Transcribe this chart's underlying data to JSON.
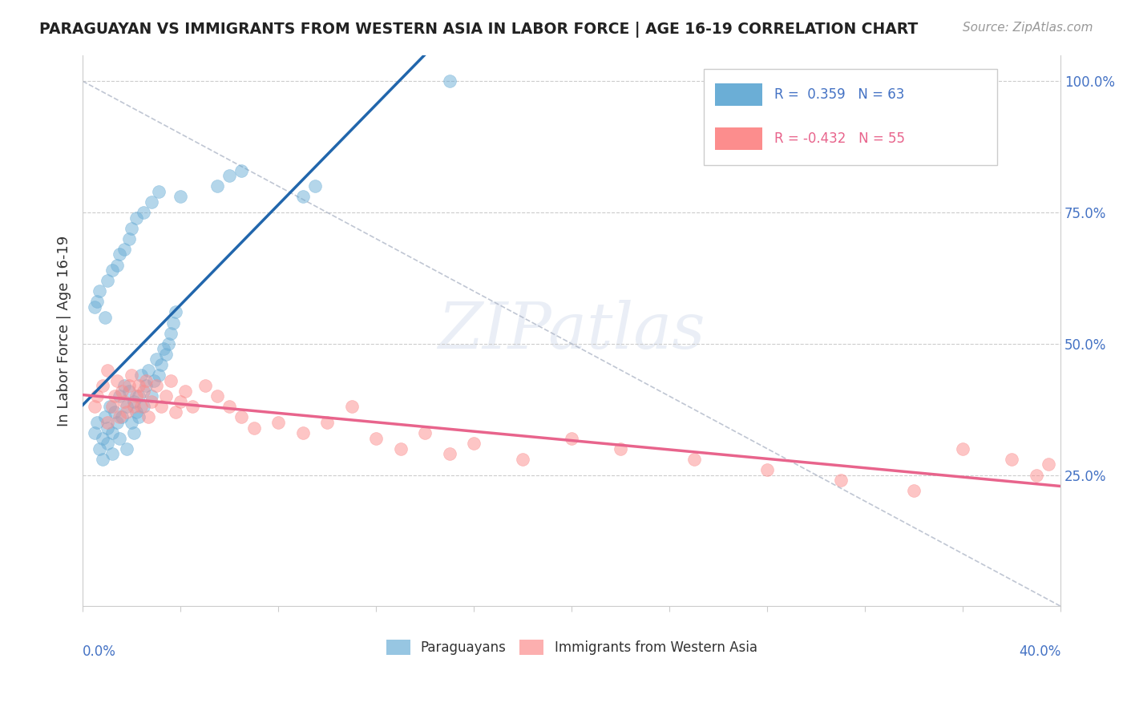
{
  "title": "PARAGUAYAN VS IMMIGRANTS FROM WESTERN ASIA IN LABOR FORCE | AGE 16-19 CORRELATION CHART",
  "source_text": "Source: ZipAtlas.com",
  "ylabel_label": "In Labor Force | Age 16-19",
  "legend_labels": [
    "Paraguayans",
    "Immigrants from Western Asia"
  ],
  "blue_color": "#6baed6",
  "pink_color": "#fc8d8d",
  "blue_reg_color": "#2166ac",
  "pink_reg_color": "#e8648c",
  "background_color": "#ffffff",
  "grid_color": "#cccccc",
  "r_blue": 0.359,
  "n_blue": 63,
  "r_pink": -0.432,
  "n_pink": 55,
  "xmin": 0.0,
  "xmax": 0.4,
  "ymin": 0.0,
  "ymax": 1.05,
  "blue_scatter_x": [
    0.005,
    0.006,
    0.007,
    0.008,
    0.008,
    0.009,
    0.01,
    0.01,
    0.011,
    0.012,
    0.012,
    0.013,
    0.014,
    0.015,
    0.015,
    0.016,
    0.017,
    0.018,
    0.018,
    0.019,
    0.02,
    0.021,
    0.021,
    0.022,
    0.023,
    0.023,
    0.024,
    0.025,
    0.026,
    0.027,
    0.028,
    0.029,
    0.03,
    0.031,
    0.032,
    0.033,
    0.034,
    0.035,
    0.036,
    0.037,
    0.038,
    0.005,
    0.006,
    0.007,
    0.009,
    0.01,
    0.012,
    0.014,
    0.015,
    0.017,
    0.019,
    0.02,
    0.022,
    0.04,
    0.025,
    0.028,
    0.031,
    0.055,
    0.06,
    0.065,
    0.09,
    0.095,
    0.15
  ],
  "blue_scatter_y": [
    0.33,
    0.35,
    0.3,
    0.32,
    0.28,
    0.36,
    0.31,
    0.34,
    0.38,
    0.29,
    0.33,
    0.37,
    0.35,
    0.4,
    0.32,
    0.36,
    0.42,
    0.38,
    0.3,
    0.41,
    0.35,
    0.39,
    0.33,
    0.37,
    0.36,
    0.4,
    0.44,
    0.38,
    0.42,
    0.45,
    0.4,
    0.43,
    0.47,
    0.44,
    0.46,
    0.49,
    0.48,
    0.5,
    0.52,
    0.54,
    0.56,
    0.57,
    0.58,
    0.6,
    0.55,
    0.62,
    0.64,
    0.65,
    0.67,
    0.68,
    0.7,
    0.72,
    0.74,
    0.78,
    0.75,
    0.77,
    0.79,
    0.8,
    0.82,
    0.83,
    0.78,
    0.8,
    1.0
  ],
  "pink_scatter_x": [
    0.005,
    0.006,
    0.008,
    0.01,
    0.01,
    0.012,
    0.013,
    0.014,
    0.015,
    0.016,
    0.017,
    0.018,
    0.019,
    0.02,
    0.021,
    0.022,
    0.023,
    0.024,
    0.025,
    0.026,
    0.027,
    0.028,
    0.03,
    0.032,
    0.034,
    0.036,
    0.038,
    0.04,
    0.042,
    0.045,
    0.05,
    0.055,
    0.06,
    0.065,
    0.07,
    0.08,
    0.09,
    0.1,
    0.11,
    0.12,
    0.13,
    0.14,
    0.15,
    0.16,
    0.18,
    0.2,
    0.22,
    0.25,
    0.28,
    0.31,
    0.34,
    0.36,
    0.38,
    0.39,
    0.395
  ],
  "pink_scatter_y": [
    0.38,
    0.4,
    0.42,
    0.35,
    0.45,
    0.38,
    0.4,
    0.43,
    0.36,
    0.41,
    0.39,
    0.37,
    0.42,
    0.44,
    0.38,
    0.4,
    0.42,
    0.38,
    0.41,
    0.43,
    0.36,
    0.39,
    0.42,
    0.38,
    0.4,
    0.43,
    0.37,
    0.39,
    0.41,
    0.38,
    0.42,
    0.4,
    0.38,
    0.36,
    0.34,
    0.35,
    0.33,
    0.35,
    0.38,
    0.32,
    0.3,
    0.33,
    0.29,
    0.31,
    0.28,
    0.32,
    0.3,
    0.28,
    0.26,
    0.24,
    0.22,
    0.3,
    0.28,
    0.25,
    0.27
  ]
}
